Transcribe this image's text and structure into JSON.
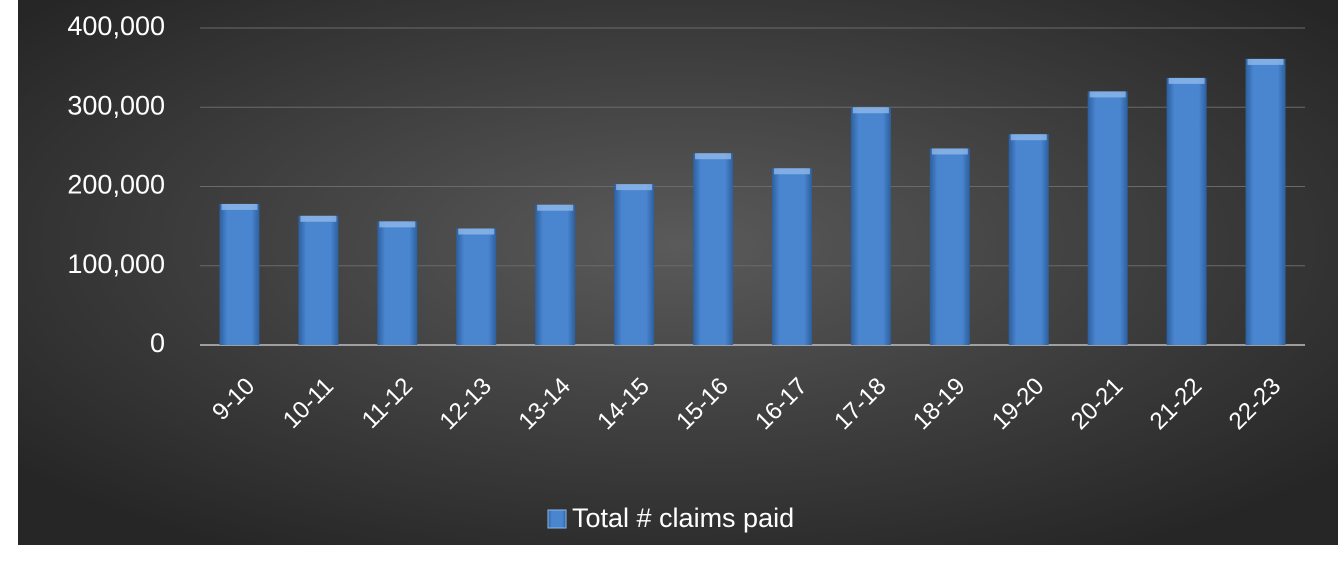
{
  "chart_data": {
    "type": "bar",
    "categories": [
      "9-10",
      "10-11",
      "11-12",
      "12-13",
      "13-14",
      "14-15",
      "15-16",
      "16-17",
      "17-18",
      "18-19",
      "19-20",
      "20-21",
      "21-22",
      "22-23"
    ],
    "series": [
      {
        "name": "Total # claims paid",
        "color": "#4a86d0",
        "values": [
          178000,
          163000,
          156000,
          147000,
          177000,
          203000,
          242000,
          223000,
          300000,
          248000,
          266000,
          320000,
          337000,
          361000
        ]
      }
    ],
    "ylim": [
      0,
      400000
    ],
    "yticks": [
      0,
      {
        "value": 100000,
        "label": "100,000"
      },
      {
        "value": 200000,
        "label": "200,000"
      },
      {
        "value": 300000,
        "label": "300,000"
      },
      {
        "value": 400000,
        "label": "400,000"
      }
    ],
    "grid": true,
    "legend": "bottom"
  }
}
